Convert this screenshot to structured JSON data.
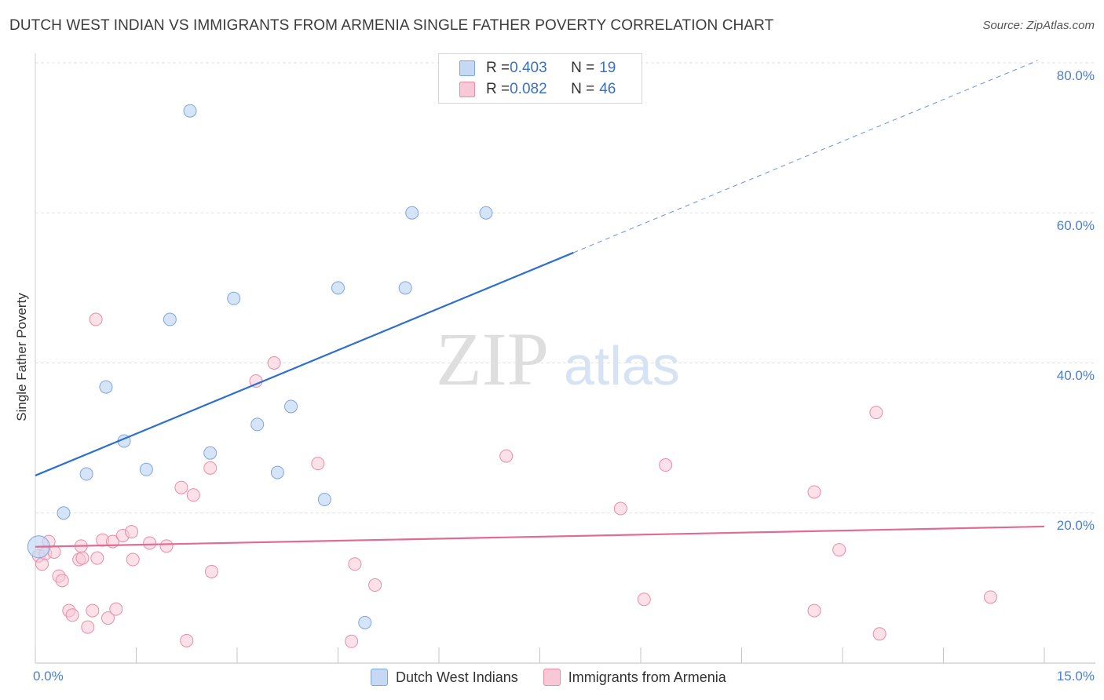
{
  "header": {
    "title": "DUTCH WEST INDIAN VS IMMIGRANTS FROM ARMENIA SINGLE FATHER POVERTY CORRELATION CHART",
    "source": "Source: ZipAtlas.com"
  },
  "watermark": {
    "zip": "ZIP",
    "atlas": "atlas"
  },
  "legend": {
    "r_label": "R = ",
    "n_label": "N = ",
    "rows": [
      {
        "r": "0.403",
        "n": "19"
      },
      {
        "r": "0.082",
        "n": "46"
      }
    ]
  },
  "colors": {
    "blue_fill": "#c5d8f4",
    "blue_stroke": "#7ea6dd",
    "blue_line": "#2f6fcc",
    "pink_fill": "#f9c8d6",
    "pink_stroke": "#e88ca8",
    "pink_line": "#e06b95",
    "grid": "#e3e3e3",
    "tick_text": "#4a7fcc"
  },
  "chart_data": {
    "type": "scatter",
    "title": "DUTCH WEST INDIAN VS IMMIGRANTS FROM ARMENIA SINGLE FATHER POVERTY CORRELATION CHART",
    "xlabel": "",
    "ylabel": "Single Father Poverty",
    "xlim": [
      0,
      15
    ],
    "ylim": [
      0,
      80
    ],
    "x_tick_labels": [
      "0.0%",
      "15.0%"
    ],
    "y_ticks": [
      20,
      40,
      60,
      80
    ],
    "y_tick_labels": [
      "20.0%",
      "40.0%",
      "60.0%",
      "80.0%"
    ],
    "grid": true,
    "legend_position": "top-center",
    "series": [
      {
        "name": "Dutch West Indians",
        "color": "#7ea6dd",
        "r": 0.403,
        "n": 19,
        "points": [
          [
            0.05,
            15.5
          ],
          [
            0.42,
            20.0
          ],
          [
            0.76,
            25.2
          ],
          [
            1.05,
            36.8
          ],
          [
            1.32,
            29.6
          ],
          [
            1.65,
            25.8
          ],
          [
            2.0,
            45.8
          ],
          [
            2.3,
            73.6
          ],
          [
            2.6,
            28.0
          ],
          [
            2.95,
            48.6
          ],
          [
            3.3,
            31.8
          ],
          [
            3.6,
            25.4
          ],
          [
            3.8,
            34.2
          ],
          [
            4.3,
            21.8
          ],
          [
            4.5,
            50.0
          ],
          [
            4.9,
            5.4
          ],
          [
            5.5,
            50.0
          ],
          [
            5.6,
            60.0
          ],
          [
            6.7,
            60.0
          ]
        ],
        "trend": {
          "x0": 0,
          "y0": 25.0,
          "x1": 8.0,
          "y1": 54.7,
          "dash_to_x": 14.9,
          "dash_to_y": 80.3
        }
      },
      {
        "name": "Immigrants from Armenia",
        "color": "#e88ca8",
        "r": 0.082,
        "n": 46,
        "points": [
          [
            0.05,
            14.3
          ],
          [
            0.1,
            13.2
          ],
          [
            0.15,
            14.6
          ],
          [
            0.2,
            16.2
          ],
          [
            0.28,
            14.8
          ],
          [
            0.35,
            11.6
          ],
          [
            0.4,
            11.0
          ],
          [
            0.5,
            7.0
          ],
          [
            0.55,
            6.4
          ],
          [
            0.65,
            13.8
          ],
          [
            0.7,
            14.0
          ],
          [
            0.68,
            15.6
          ],
          [
            0.78,
            4.8
          ],
          [
            0.85,
            7.0
          ],
          [
            0.9,
            45.8
          ],
          [
            0.92,
            14.0
          ],
          [
            1.0,
            16.4
          ],
          [
            1.08,
            6.0
          ],
          [
            1.15,
            16.2
          ],
          [
            1.2,
            7.2
          ],
          [
            1.3,
            17.0
          ],
          [
            1.43,
            17.5
          ],
          [
            1.45,
            13.8
          ],
          [
            1.7,
            16.0
          ],
          [
            1.95,
            15.6
          ],
          [
            2.17,
            23.4
          ],
          [
            2.25,
            3.0
          ],
          [
            2.35,
            22.4
          ],
          [
            2.6,
            26.0
          ],
          [
            2.62,
            12.2
          ],
          [
            3.28,
            37.6
          ],
          [
            3.55,
            40.0
          ],
          [
            4.2,
            26.6
          ],
          [
            4.7,
            2.9
          ],
          [
            4.75,
            13.2
          ],
          [
            5.05,
            10.4
          ],
          [
            7.0,
            27.6
          ],
          [
            8.7,
            20.6
          ],
          [
            9.05,
            8.5
          ],
          [
            9.37,
            26.4
          ],
          [
            11.58,
            7.0
          ],
          [
            11.58,
            22.8
          ],
          [
            11.95,
            15.1
          ],
          [
            12.5,
            33.4
          ],
          [
            12.55,
            3.9
          ],
          [
            14.2,
            8.8
          ]
        ],
        "trend": {
          "x0": 0,
          "y0": 15.5,
          "x1": 15,
          "y1": 18.2
        }
      }
    ]
  }
}
